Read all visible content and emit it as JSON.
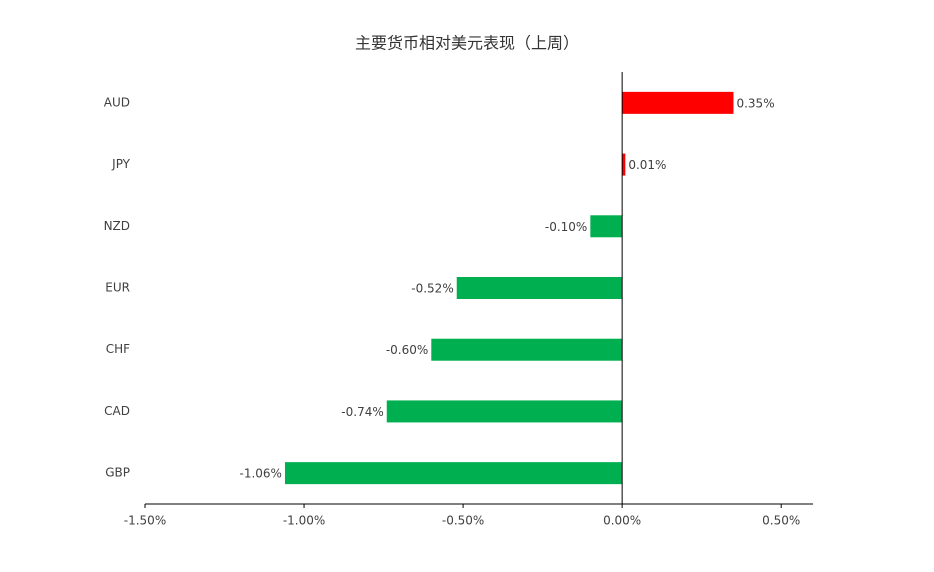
{
  "chart_data": {
    "type": "hbar",
    "title": "主要货币相对美元表现（上周）",
    "categories": [
      "AUD",
      "JPY",
      "NZD",
      "EUR",
      "CHF",
      "CAD",
      "GBP"
    ],
    "values": [
      0.35,
      0.01,
      -0.1,
      -0.52,
      -0.6,
      -0.74,
      -1.06
    ],
    "value_labels": [
      "0.35%",
      "0.01%",
      "-0.10%",
      "-0.52%",
      "-0.60%",
      "-0.74%",
      "-1.06%"
    ],
    "colors": [
      "#ff0000",
      "#ff0000",
      "#00b050",
      "#00b050",
      "#00b050",
      "#00b050",
      "#00b050"
    ],
    "xlim": [
      -1.5,
      0.6
    ],
    "xticks": [
      {
        "value": -1.5,
        "label": "-1.50%"
      },
      {
        "value": -1.0,
        "label": "-1.00%"
      },
      {
        "value": -0.5,
        "label": "-0.50%"
      },
      {
        "value": 0,
        "label": "0.00%"
      },
      {
        "value": 0.5,
        "label": "0.50%"
      }
    ]
  }
}
